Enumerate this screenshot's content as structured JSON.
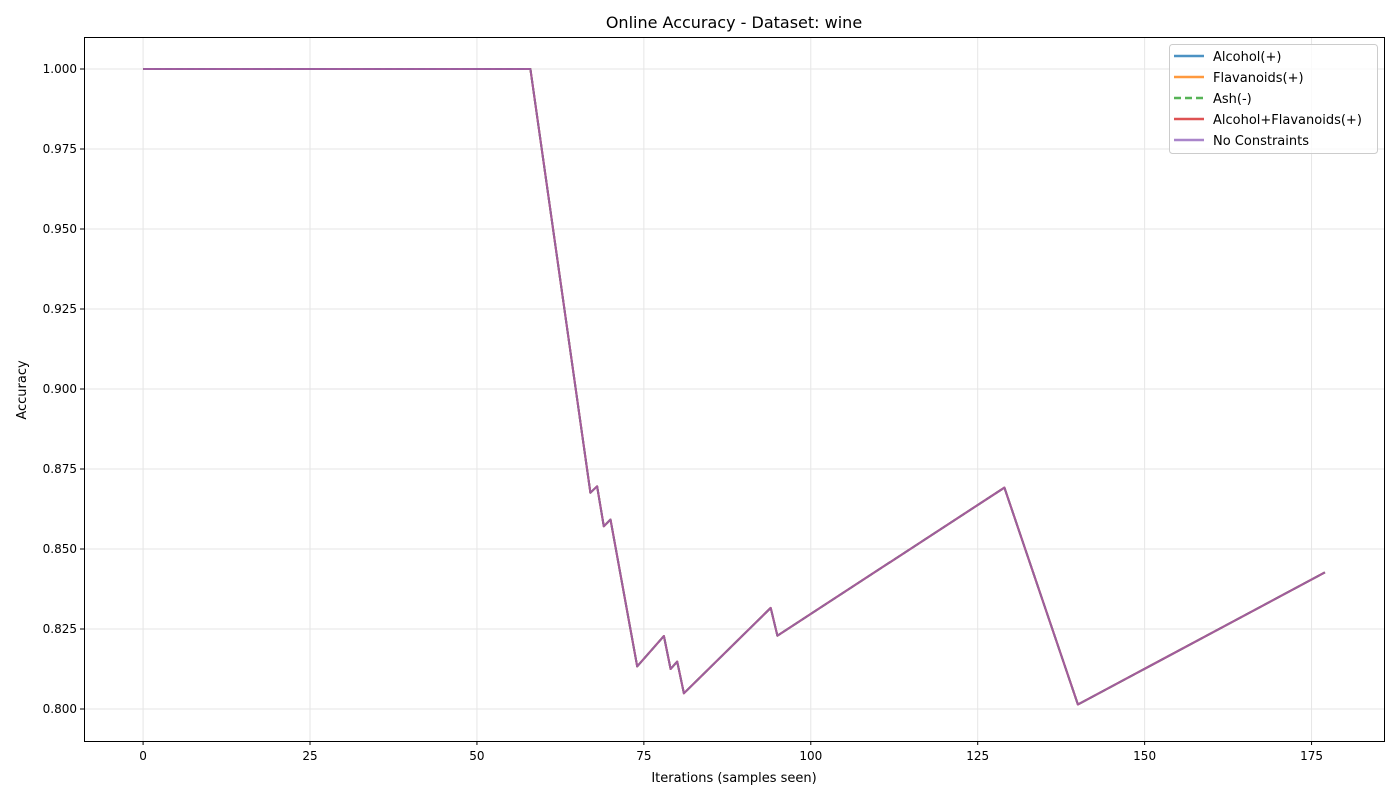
{
  "chart_data": {
    "type": "line",
    "title": "Online Accuracy - Dataset: wine",
    "xlabel": "Iterations (samples seen)",
    "ylabel": "Accuracy",
    "xlim": [
      -8.85,
      185.85
    ],
    "ylim": [
      0.79,
      1.01
    ],
    "xticks": [
      0,
      25,
      50,
      75,
      100,
      125,
      150,
      175
    ],
    "xtick_labels": [
      "0",
      "25",
      "50",
      "75",
      "100",
      "125",
      "150",
      "175"
    ],
    "yticks": [
      0.8,
      0.825,
      0.85,
      0.875,
      0.9,
      0.925,
      0.95,
      0.975,
      1.0
    ],
    "ytick_labels": [
      "0.800",
      "0.825",
      "0.850",
      "0.875",
      "0.900",
      "0.925",
      "0.950",
      "0.975",
      "1.000"
    ],
    "grid": true,
    "legend_position": "top-right",
    "x": [
      0,
      58,
      67,
      68,
      69,
      70,
      74,
      78,
      79,
      80,
      81,
      94,
      95,
      129,
      140,
      177
    ],
    "series": [
      {
        "name": "Alcohol(+)",
        "color": "#1f77b4",
        "dash": "solid",
        "values": [
          1.0,
          1.0,
          0.8676,
          0.8696,
          0.8571,
          0.8592,
          0.8133,
          0.8228,
          0.8125,
          0.8148,
          0.8049,
          0.8316,
          0.8229,
          0.8692,
          0.8014,
          0.8427
        ]
      },
      {
        "name": "Flavanoids(+)",
        "color": "#ff7f0e",
        "dash": "solid",
        "values": [
          1.0,
          1.0,
          0.8676,
          0.8696,
          0.8571,
          0.8592,
          0.8133,
          0.8228,
          0.8125,
          0.8148,
          0.8049,
          0.8316,
          0.8229,
          0.8692,
          0.8014,
          0.8427
        ]
      },
      {
        "name": "Ash(-)",
        "color": "#2ca02c",
        "dash": "dashed",
        "values": [
          1.0,
          1.0,
          0.8676,
          0.8696,
          0.8571,
          0.8592,
          0.8133,
          0.8228,
          0.8125,
          0.8148,
          0.8049,
          0.8316,
          0.8229,
          0.8692,
          0.8014,
          0.8427
        ]
      },
      {
        "name": "Alcohol+Flavanoids(+)",
        "color": "#d62728",
        "dash": "solid",
        "values": [
          1.0,
          1.0,
          0.8676,
          0.8696,
          0.8571,
          0.8592,
          0.8133,
          0.8228,
          0.8125,
          0.8148,
          0.8049,
          0.8316,
          0.8229,
          0.8692,
          0.8014,
          0.8427
        ]
      },
      {
        "name": "No Constraints",
        "color": "#9467bd",
        "dash": "solid",
        "values": [
          1.0,
          1.0,
          0.8676,
          0.8696,
          0.8571,
          0.8592,
          0.8133,
          0.8228,
          0.8125,
          0.8148,
          0.8049,
          0.8316,
          0.8229,
          0.8692,
          0.8014,
          0.8427
        ]
      }
    ]
  }
}
